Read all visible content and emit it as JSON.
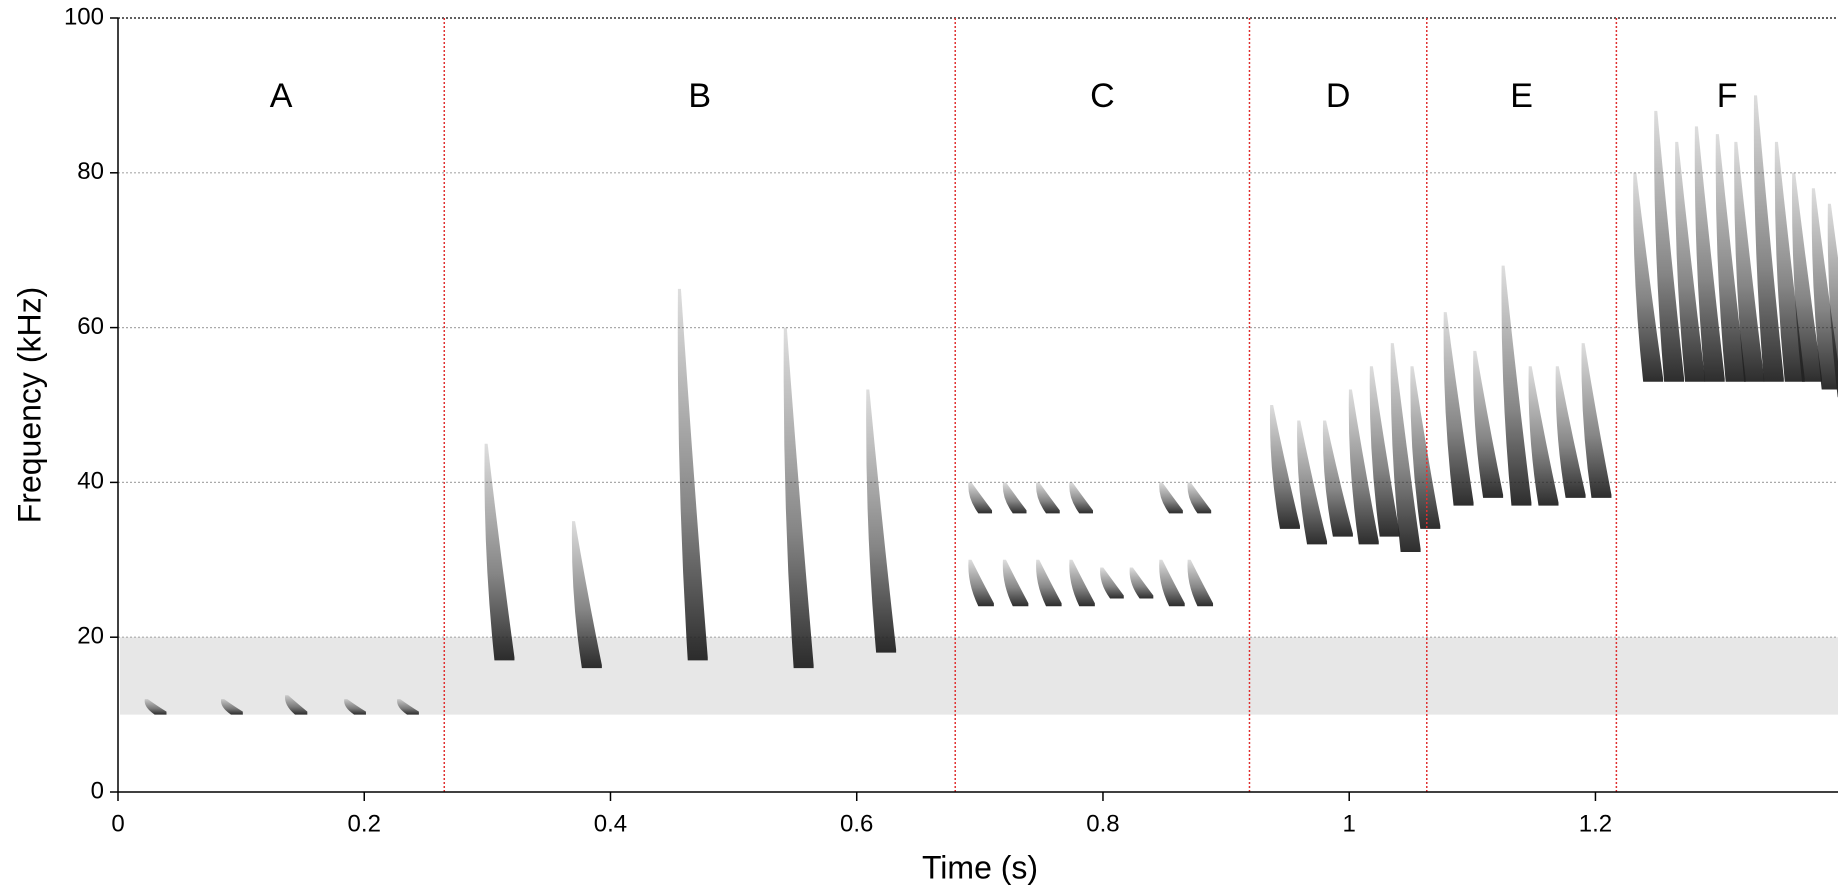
{
  "chart_data": {
    "type": "spectrogram",
    "xlabel": "Time (s)",
    "ylabel": "Frequency (kHz)",
    "xlim": [
      0,
      1.397
    ],
    "ylim": [
      0,
      100
    ],
    "xticks": [
      0,
      0.2,
      0.4,
      0.6,
      0.8,
      1,
      1.2
    ],
    "yticks": [
      0,
      20,
      40,
      60,
      80,
      100
    ],
    "grid": true,
    "boundary_color": "#e03030",
    "mark_color": "#222222",
    "noise_band": [
      10,
      20
    ],
    "segments": [
      {
        "label": "A",
        "start": 0,
        "end": 0.265,
        "syllables": [
          {
            "t": 0.023,
            "low": 10,
            "high": 12
          },
          {
            "t": 0.085,
            "low": 10,
            "high": 12
          },
          {
            "t": 0.137,
            "low": 10,
            "high": 12.5
          },
          {
            "t": 0.185,
            "low": 10,
            "high": 12
          },
          {
            "t": 0.228,
            "low": 10,
            "high": 12
          }
        ]
      },
      {
        "label": "B",
        "start": 0.265,
        "end": 0.68,
        "syllables": [
          {
            "t": 0.299,
            "low": 17,
            "high": 45
          },
          {
            "t": 0.37,
            "low": 16,
            "high": 35
          },
          {
            "t": 0.456,
            "low": 17,
            "high": 65
          },
          {
            "t": 0.542,
            "low": 16,
            "high": 60
          },
          {
            "t": 0.609,
            "low": 18,
            "high": 52
          }
        ]
      },
      {
        "label": "C",
        "start": 0.68,
        "end": 0.919,
        "syllables": [
          {
            "t": 0.692,
            "low": 24,
            "high": 30
          },
          {
            "t": 0.72,
            "low": 24,
            "high": 30
          },
          {
            "t": 0.747,
            "low": 24,
            "high": 30
          },
          {
            "t": 0.774,
            "low": 24,
            "high": 30
          },
          {
            "t": 0.799,
            "low": 25,
            "high": 29
          },
          {
            "t": 0.823,
            "low": 25,
            "high": 29
          },
          {
            "t": 0.847,
            "low": 24,
            "high": 30
          },
          {
            "t": 0.87,
            "low": 24,
            "high": 30
          },
          {
            "t": 0.692,
            "low": 36,
            "high": 40
          },
          {
            "t": 0.72,
            "low": 36,
            "high": 40
          },
          {
            "t": 0.747,
            "low": 36,
            "high": 40
          },
          {
            "t": 0.774,
            "low": 36,
            "high": 40
          },
          {
            "t": 0.847,
            "low": 36,
            "high": 40
          },
          {
            "t": 0.87,
            "low": 36,
            "high": 40
          }
        ]
      },
      {
        "label": "D",
        "start": 0.919,
        "end": 1.063,
        "syllables": [
          {
            "t": 0.937,
            "low": 34,
            "high": 50
          },
          {
            "t": 0.959,
            "low": 32,
            "high": 48
          },
          {
            "t": 0.98,
            "low": 33,
            "high": 48
          },
          {
            "t": 1.001,
            "low": 32,
            "high": 52
          },
          {
            "t": 1.018,
            "low": 33,
            "high": 55
          },
          {
            "t": 1.035,
            "low": 31,
            "high": 58
          },
          {
            "t": 1.051,
            "low": 34,
            "high": 55
          }
        ]
      },
      {
        "label": "E",
        "start": 1.063,
        "end": 1.217,
        "syllables": [
          {
            "t": 1.078,
            "low": 37,
            "high": 62
          },
          {
            "t": 1.102,
            "low": 38,
            "high": 57
          },
          {
            "t": 1.125,
            "low": 37,
            "high": 68
          },
          {
            "t": 1.147,
            "low": 37,
            "high": 55
          },
          {
            "t": 1.169,
            "low": 38,
            "high": 55
          },
          {
            "t": 1.19,
            "low": 38,
            "high": 58
          }
        ]
      },
      {
        "label": "F",
        "start": 1.217,
        "end": 1.397,
        "syllables": [
          {
            "t": 1.232,
            "low": 53,
            "high": 80
          },
          {
            "t": 1.249,
            "low": 53,
            "high": 88
          },
          {
            "t": 1.266,
            "low": 53,
            "high": 84
          },
          {
            "t": 1.282,
            "low": 53,
            "high": 86
          },
          {
            "t": 1.299,
            "low": 53,
            "high": 85
          },
          {
            "t": 1.314,
            "low": 53,
            "high": 84
          },
          {
            "t": 1.33,
            "low": 53,
            "high": 90
          },
          {
            "t": 1.347,
            "low": 53,
            "high": 84
          },
          {
            "t": 1.361,
            "low": 53,
            "high": 80
          },
          {
            "t": 1.377,
            "low": 52,
            "high": 78
          },
          {
            "t": 1.39,
            "low": 51,
            "high": 76
          }
        ]
      }
    ]
  }
}
